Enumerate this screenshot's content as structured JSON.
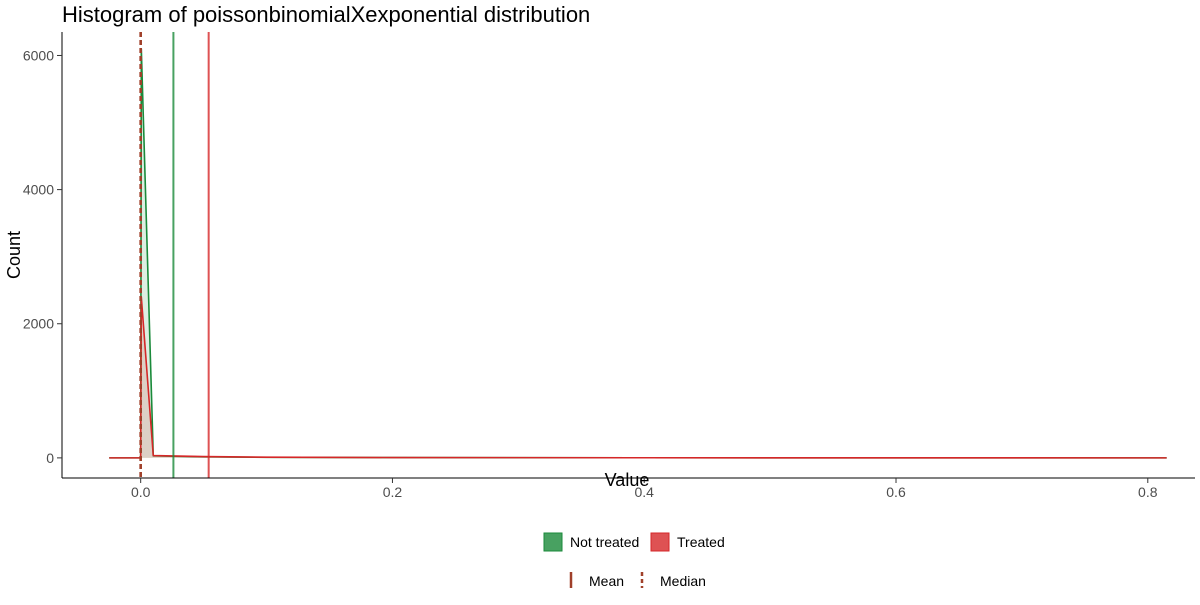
{
  "chart_data": {
    "type": "histogram",
    "title": "Histogram of poissonbinomialXexponential distribution",
    "xlabel": "Value",
    "ylabel": "Count",
    "xlim": [
      -0.0625,
      0.8375
    ],
    "ylim": [
      -300,
      6350
    ],
    "x_ticks": [
      0.0,
      0.2,
      0.4,
      0.6,
      0.8
    ],
    "x_tick_labels": [
      "0.0",
      "0.2",
      "0.4",
      "0.6",
      "0.8"
    ],
    "y_ticks": [
      0,
      2000,
      4000,
      6000
    ],
    "y_tick_labels": [
      "0",
      "2000",
      "4000",
      "6000"
    ],
    "grid": false,
    "series": [
      {
        "name": "Not treated",
        "color": "#1a8a3a",
        "x": [
          -0.025,
          0.0,
          0.0005,
          0.01,
          0.05,
          0.1,
          0.2,
          0.4,
          0.6,
          0.815
        ],
        "y": [
          0,
          0,
          6100,
          30,
          15,
          8,
          4,
          2,
          1,
          0
        ],
        "mean": 0.026,
        "median": 0.0
      },
      {
        "name": "Treated",
        "color": "#d62728",
        "x": [
          -0.025,
          0.0,
          0.0005,
          0.01,
          0.05,
          0.1,
          0.2,
          0.4,
          0.6,
          0.815
        ],
        "y": [
          0,
          0,
          2400,
          35,
          20,
          10,
          5,
          2,
          1,
          0
        ],
        "mean": 0.054,
        "median": 0.0
      }
    ],
    "legend": {
      "position": "bottom",
      "fill_entries": [
        "Not treated",
        "Treated"
      ],
      "line_entries": [
        "Mean",
        "Median"
      ],
      "line_color": "#a0402a"
    }
  }
}
